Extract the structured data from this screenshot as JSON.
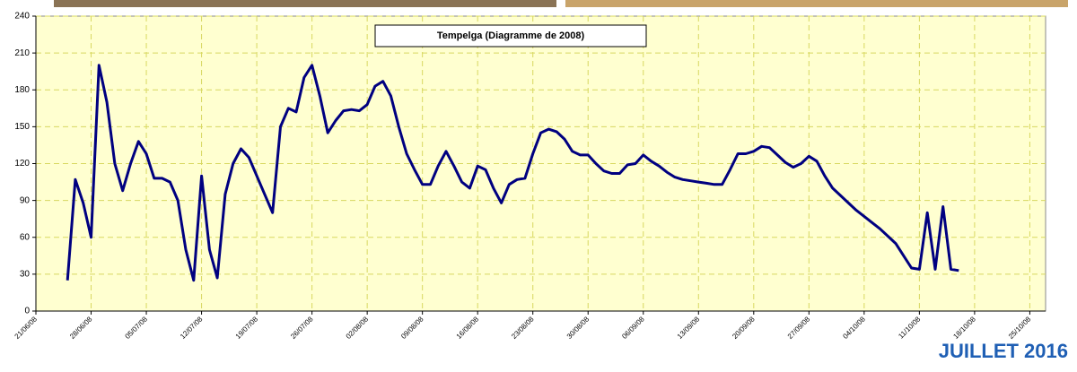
{
  "chart_data": {
    "type": "line",
    "title": "Tempelga (Diagramme de 2008)",
    "x": [
      "25/06/08",
      "26/06/08",
      "27/06/08",
      "28/06/08",
      "29/06/08",
      "30/06/08",
      "01/07/08",
      "02/07/08",
      "03/07/08",
      "04/07/08",
      "05/07/08",
      "06/07/08",
      "07/07/08",
      "08/07/08",
      "09/07/08",
      "10/07/08",
      "11/07/08",
      "12/07/08",
      "13/07/08",
      "14/07/08",
      "15/07/08",
      "16/07/08",
      "17/07/08",
      "18/07/08",
      "19/07/08",
      "20/07/08",
      "21/07/08",
      "22/07/08",
      "23/07/08",
      "24/07/08",
      "25/07/08",
      "26/07/08",
      "27/07/08",
      "28/07/08",
      "29/07/08",
      "30/07/08",
      "31/07/08",
      "01/08/08",
      "02/08/08",
      "03/08/08",
      "04/08/08",
      "05/08/08",
      "06/08/08",
      "07/08/08",
      "08/08/08",
      "09/08/08",
      "10/08/08",
      "11/08/08",
      "12/08/08",
      "13/08/08",
      "14/08/08",
      "15/08/08",
      "16/08/08",
      "17/08/08",
      "18/08/08",
      "19/08/08",
      "20/08/08",
      "21/08/08",
      "22/08/08",
      "23/08/08",
      "24/08/08",
      "25/08/08",
      "26/08/08",
      "27/08/08",
      "28/08/08",
      "29/08/08",
      "30/08/08",
      "31/08/08",
      "01/09/08",
      "02/09/08",
      "03/09/08",
      "04/09/08",
      "05/09/08",
      "06/09/08",
      "07/09/08",
      "08/09/08",
      "09/09/08",
      "10/09/08",
      "11/09/08",
      "12/09/08",
      "13/09/08",
      "14/09/08",
      "15/09/08",
      "16/09/08",
      "17/09/08",
      "18/09/08",
      "19/09/08",
      "20/09/08",
      "21/09/08",
      "22/09/08",
      "23/09/08",
      "24/09/08",
      "25/09/08",
      "26/09/08",
      "27/09/08",
      "28/09/08",
      "29/09/08",
      "30/09/08",
      "01/10/08",
      "02/10/08",
      "03/10/08",
      "04/10/08",
      "05/10/08",
      "06/10/08",
      "07/10/08",
      "08/10/08",
      "09/10/08",
      "10/10/08",
      "11/10/08",
      "12/10/08",
      "13/10/08",
      "14/10/08",
      "15/10/08",
      "16/10/08"
    ],
    "series": [
      {
        "color": "#000080",
        "values": [
          25,
          107,
          88,
          60,
          200,
          170,
          120,
          98,
          120,
          138,
          128,
          108,
          108,
          105,
          90,
          50,
          25,
          110,
          50,
          27,
          95,
          120,
          132,
          125,
          110,
          95,
          80,
          150,
          165,
          162,
          190,
          200,
          175,
          145,
          155,
          163,
          164,
          163,
          168,
          183,
          187,
          175,
          150,
          128,
          115,
          103,
          103,
          118,
          130,
          118,
          105,
          100,
          118,
          115,
          100,
          88,
          103,
          107,
          108,
          128,
          145,
          148,
          146,
          140,
          130,
          127,
          127,
          120,
          114,
          112,
          112,
          119,
          120,
          127,
          122,
          118,
          113,
          109,
          107,
          106,
          105,
          104,
          103,
          103,
          115,
          128,
          128,
          130,
          134,
          133,
          127,
          121,
          117,
          120,
          126,
          122,
          110,
          100,
          94,
          88,
          82,
          77,
          72,
          67,
          61,
          55,
          45,
          35,
          34,
          80,
          34,
          85,
          34,
          33
        ]
      }
    ],
    "xlim": [
      "21/06/08",
      "27/10/08"
    ],
    "xticks": [
      "21/06/08",
      "28/06/08",
      "05/07/08",
      "12/07/08",
      "19/07/08",
      "26/07/08",
      "02/08/08",
      "09/08/08",
      "16/08/08",
      "23/08/08",
      "30/08/08",
      "06/09/08",
      "13/09/08",
      "20/09/08",
      "27/09/08",
      "04/10/08",
      "11/10/08",
      "18/10/08",
      "25/10/08"
    ],
    "ylim": [
      0,
      240
    ],
    "yticks": [
      0,
      30,
      60,
      90,
      120,
      150,
      180,
      210,
      240
    ],
    "grid": true
  },
  "footer": "JUILLET 2016"
}
